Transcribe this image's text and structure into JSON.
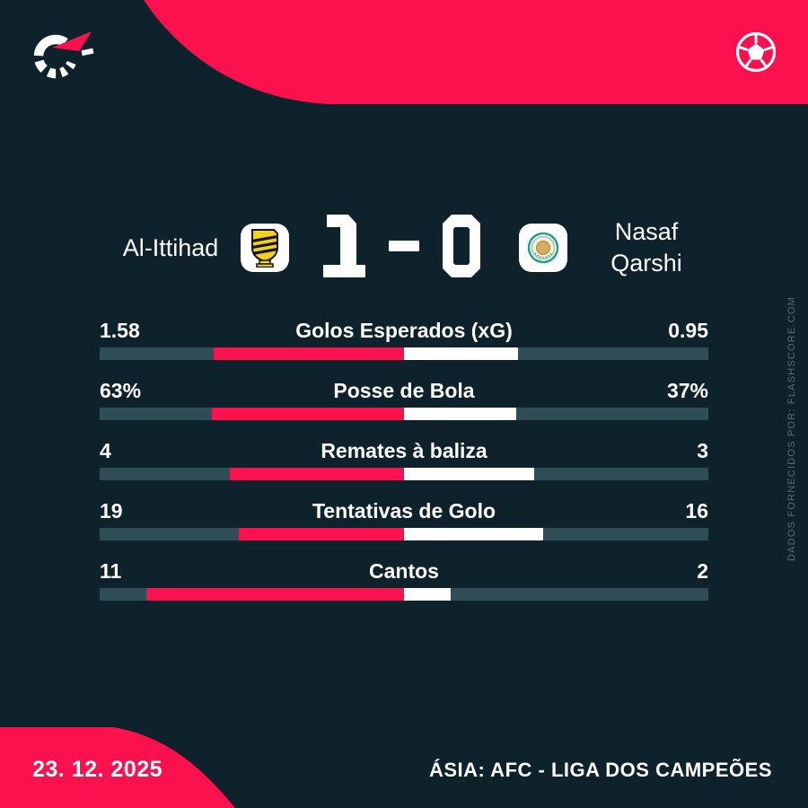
{
  "brand": {
    "name": "Flashscore",
    "logo_icon": "flashscore-spinner-icon",
    "sport_icon": "soccer-ball-icon"
  },
  "colors": {
    "background": "#0d222a",
    "accent": "#fc114f",
    "bar_track": "#2f4d56",
    "bar_away": "#ffffff",
    "watermark_text": "#567078"
  },
  "match": {
    "home_team": "Al-Ittihad",
    "away_team_line1": "Nasaf",
    "away_team_line2": "Qarshi",
    "home_score": "1",
    "score_separator": "-",
    "away_score": "0"
  },
  "stats": [
    {
      "label": "Golos Esperados (xG)",
      "home": "1.58",
      "away": "0.95",
      "home_value": 1.58,
      "away_value": 0.95
    },
    {
      "label": "Posse de Bola",
      "home": "63%",
      "away": "37%",
      "home_value": 63,
      "away_value": 37
    },
    {
      "label": "Remates à baliza",
      "home": "4",
      "away": "3",
      "home_value": 4,
      "away_value": 3
    },
    {
      "label": "Tentativas de Golo",
      "home": "19",
      "away": "16",
      "home_value": 19,
      "away_value": 16
    },
    {
      "label": "Cantos",
      "home": "11",
      "away": "2",
      "home_value": 11,
      "away_value": 2
    }
  ],
  "chart_data": {
    "type": "bar",
    "orientation": "horizontal-diverging",
    "title": "Al-Ittihad 1-0 Nasaf Qarshi",
    "categories": [
      "Golos Esperados (xG)",
      "Posse de Bola",
      "Remates à baliza",
      "Tentativas de Golo",
      "Cantos"
    ],
    "series": [
      {
        "name": "Al-Ittihad",
        "values": [
          1.58,
          63,
          4,
          19,
          11
        ],
        "color": "#fc114f"
      },
      {
        "name": "Nasaf Qarshi",
        "values": [
          0.95,
          37,
          3,
          16,
          2
        ],
        "color": "#ffffff"
      }
    ],
    "legend_position": "none",
    "grid": false
  },
  "footer": {
    "date": "23. 12. 2025",
    "competition": "ÁSIA: AFC - LIGA DOS CAMPEÕES"
  },
  "watermark": "DADOS FORNECIDOS POR: FLASHSCORE.COM"
}
